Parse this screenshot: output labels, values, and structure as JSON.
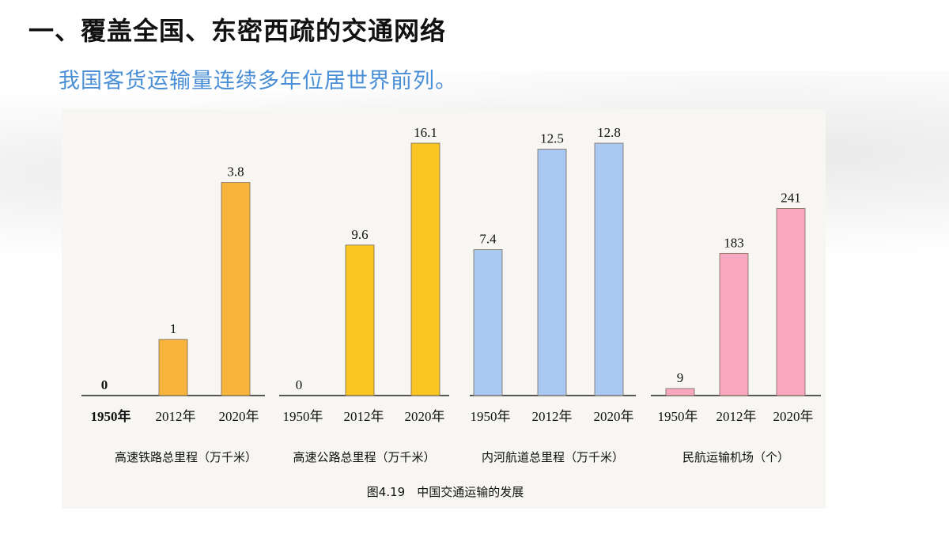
{
  "slide": {
    "title": "一、覆盖全国、东密西疏的交通网络",
    "subtitle": "我国客货运输量连续多年位居世界前列。"
  },
  "chart_data": {
    "type": "bar",
    "caption": "图4.19　中国交通运输的发展",
    "categories": [
      "1950年",
      "2012年",
      "2020年"
    ],
    "groups": [
      {
        "name": "高速铁路总里程（万千米）",
        "values": [
          0,
          1,
          3.8
        ],
        "labels": [
          "0",
          "1",
          "3.8"
        ],
        "max": 4.5,
        "color": "#f7b43c",
        "first_label_bold": true
      },
      {
        "name": "高速公路总里程（万千米）",
        "values": [
          0,
          9.6,
          16.1
        ],
        "labels": [
          "0",
          "9.6",
          "16.1"
        ],
        "max": 16.1,
        "color": "#f8c523",
        "first_label_bold": false
      },
      {
        "name": "内河航道总里程（万千米）",
        "values": [
          7.4,
          12.5,
          12.8
        ],
        "labels": [
          "7.4",
          "12.5",
          "12.8"
        ],
        "max": 12.8,
        "color": "#a9c9f2",
        "first_label_bold": false
      },
      {
        "name": "民航运输机场（个）",
        "values": [
          9,
          183,
          241
        ],
        "labels": [
          "9",
          "183",
          "241"
        ],
        "max": 325,
        "color": "#f7a8c0",
        "first_label_bold": false
      }
    ]
  }
}
